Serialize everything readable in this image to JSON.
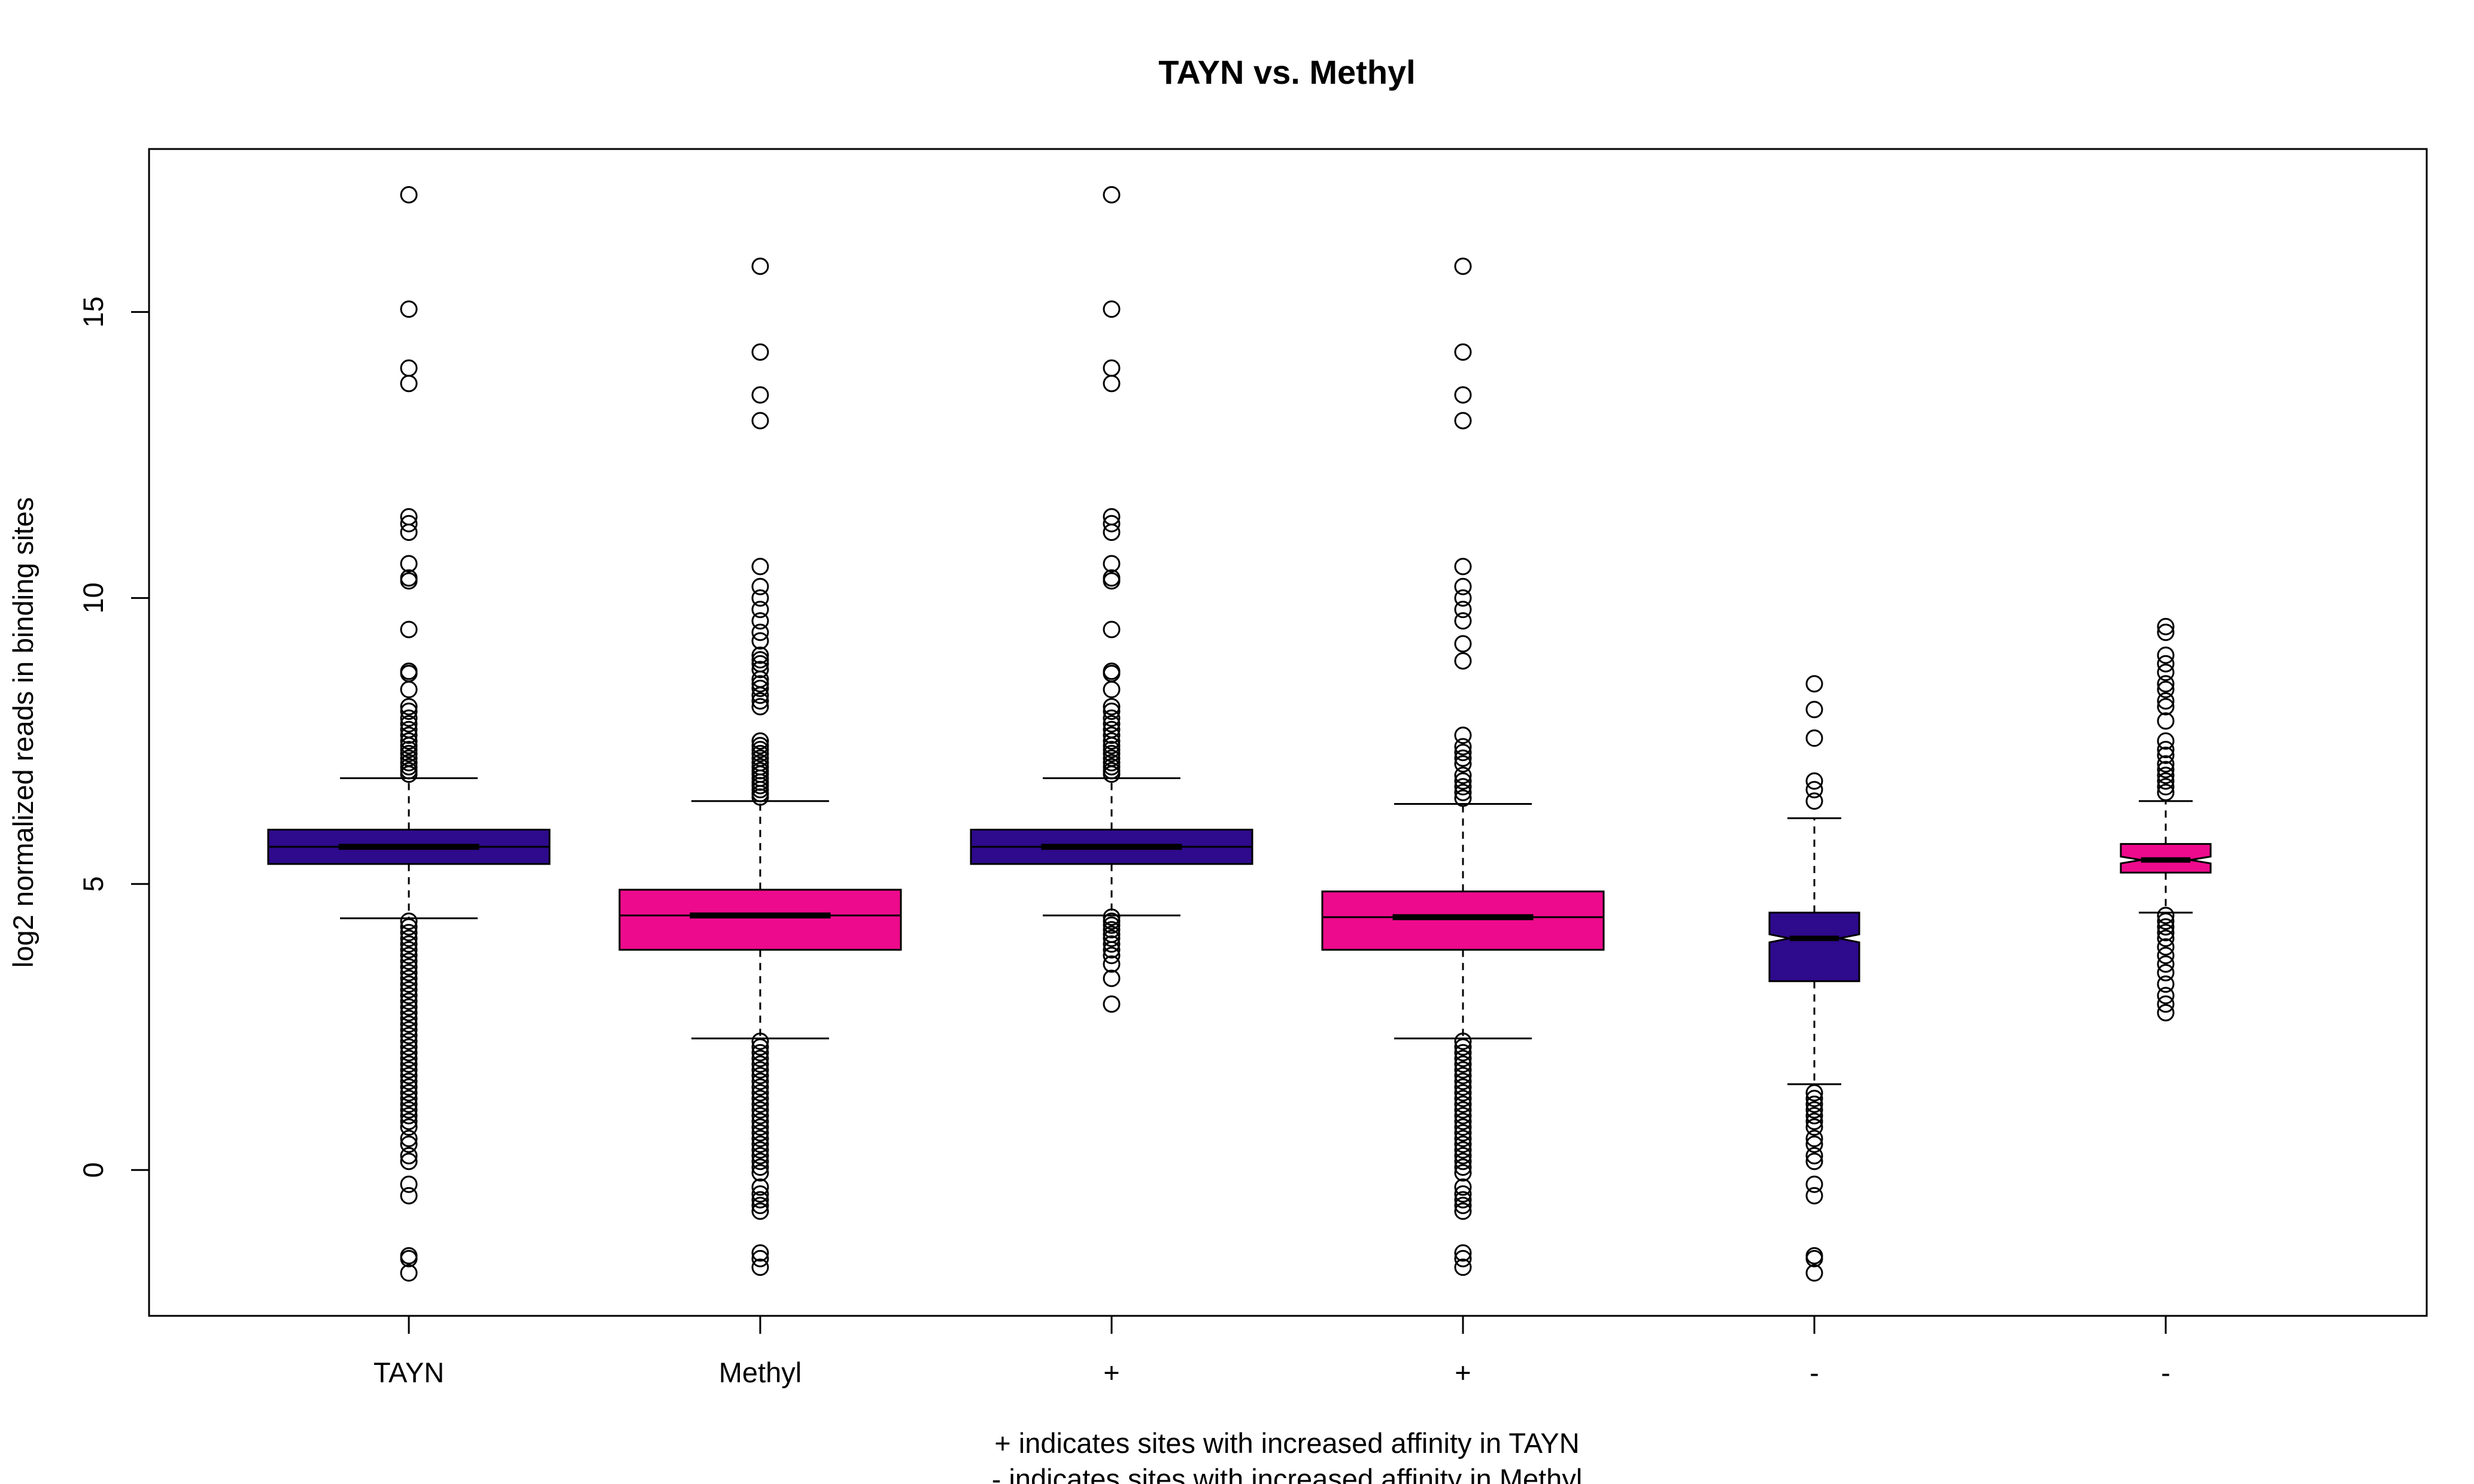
{
  "chart_data": {
    "type": "boxplot",
    "title": "TAYN vs. Methyl",
    "ylabel": "log2 normalized reads in binding sites",
    "xlabel_lines": [
      "+ indicates sites with increased affinity in TAYN",
      "- indicates sites with increased affinity in Methyl"
    ],
    "ylim": [
      -2.55,
      17.85
    ],
    "yticks": [
      0,
      5,
      10,
      15
    ],
    "grid": false,
    "legend": "none",
    "categories": [
      "TAYN",
      "Methyl",
      "+",
      "+",
      "-",
      "-"
    ],
    "colors": {
      "tayn": "#2e0a8c",
      "methyl": "#ee0a8c",
      "outline": "#000000"
    },
    "boxes": [
      {
        "label": "TAYN",
        "color": "#2e0a8c",
        "notched": false,
        "q1": 5.35,
        "median": 5.65,
        "q3": 5.95,
        "whisker_low": 4.4,
        "whisker_high": 6.85,
        "outliers": [
          17.05,
          15.05,
          14.02,
          13.75,
          11.42,
          11.3,
          11.15,
          10.6,
          10.35,
          10.3,
          9.45,
          8.72,
          8.68,
          8.4,
          8.1,
          8.02,
          7.9,
          7.8,
          7.7,
          7.6,
          7.5,
          7.42,
          7.35,
          7.28,
          7.2,
          7.12,
          7.05,
          6.98,
          6.92,
          4.35,
          4.25,
          4.15,
          4.05,
          3.95,
          3.85,
          3.75,
          3.65,
          3.55,
          3.45,
          3.35,
          3.25,
          3.15,
          3.05,
          2.95,
          2.85,
          2.75,
          2.65,
          2.55,
          2.45,
          2.35,
          2.25,
          2.15,
          2.05,
          1.95,
          1.85,
          1.75,
          1.65,
          1.55,
          1.45,
          1.35,
          1.25,
          1.15,
          1.05,
          0.95,
          0.85,
          0.75,
          0.55,
          0.45,
          0.25,
          0.15,
          -0.25,
          -0.45,
          -1.5,
          -1.55,
          -1.8
        ]
      },
      {
        "label": "Methyl",
        "color": "#ee0a8c",
        "notched": false,
        "q1": 3.85,
        "median": 4.45,
        "q3": 4.9,
        "whisker_low": 2.3,
        "whisker_high": 6.45,
        "outliers": [
          15.8,
          14.3,
          13.55,
          13.1,
          10.55,
          10.2,
          10.0,
          9.8,
          9.6,
          9.4,
          9.25,
          9.0,
          8.92,
          8.85,
          8.75,
          8.58,
          8.5,
          8.42,
          8.3,
          8.2,
          8.1,
          7.5,
          7.42,
          7.35,
          7.28,
          7.2,
          7.12,
          7.05,
          6.98,
          6.92,
          6.85,
          6.78,
          6.72,
          6.65,
          6.58,
          6.52,
          2.25,
          2.15,
          2.05,
          1.95,
          1.85,
          1.75,
          1.65,
          1.55,
          1.45,
          1.35,
          1.25,
          1.15,
          1.05,
          0.95,
          0.85,
          0.75,
          0.65,
          0.55,
          0.45,
          0.35,
          0.25,
          0.15,
          0.05,
          -0.05,
          -0.3,
          -0.42,
          -0.52,
          -0.62,
          -0.72,
          -1.45,
          -1.55,
          -1.7
        ]
      },
      {
        "label": "+",
        "color": "#2e0a8c",
        "notched": false,
        "q1": 5.35,
        "median": 5.65,
        "q3": 5.95,
        "whisker_low": 4.45,
        "whisker_high": 6.85,
        "outliers": [
          17.05,
          15.05,
          14.02,
          13.75,
          11.42,
          11.3,
          11.15,
          10.6,
          10.35,
          10.3,
          9.45,
          8.72,
          8.68,
          8.4,
          8.1,
          8.02,
          7.9,
          7.8,
          7.7,
          7.6,
          7.5,
          7.42,
          7.35,
          7.28,
          7.2,
          7.12,
          7.05,
          6.98,
          6.92,
          4.42,
          4.35,
          4.28,
          4.2,
          4.12,
          4.05,
          3.95,
          3.85,
          3.75,
          3.6,
          3.35,
          2.9
        ]
      },
      {
        "label": "+",
        "color": "#ee0a8c",
        "notched": false,
        "q1": 3.85,
        "median": 4.42,
        "q3": 4.87,
        "whisker_low": 2.3,
        "whisker_high": 6.4,
        "outliers": [
          15.8,
          14.3,
          13.55,
          13.1,
          10.55,
          10.2,
          10.0,
          9.8,
          9.6,
          9.2,
          8.9,
          7.6,
          7.4,
          7.3,
          7.2,
          7.1,
          6.9,
          6.8,
          6.7,
          6.6,
          6.5,
          2.25,
          2.15,
          2.05,
          1.95,
          1.85,
          1.75,
          1.65,
          1.55,
          1.45,
          1.35,
          1.25,
          1.15,
          1.05,
          0.95,
          0.85,
          0.75,
          0.65,
          0.55,
          0.45,
          0.35,
          0.25,
          0.15,
          0.05,
          -0.05,
          -0.3,
          -0.42,
          -0.52,
          -0.62,
          -0.72,
          -1.45,
          -1.55,
          -1.7
        ]
      },
      {
        "label": "-",
        "color": "#2e0a8c",
        "notched": true,
        "q1": 3.3,
        "median": 4.05,
        "q3": 4.5,
        "notch_low": 3.98,
        "notch_high": 4.12,
        "whisker_low": 1.5,
        "whisker_high": 6.15,
        "outliers": [
          8.5,
          8.05,
          7.55,
          6.8,
          6.65,
          6.45,
          1.35,
          1.25,
          1.15,
          1.05,
          0.95,
          0.85,
          0.75,
          0.55,
          0.45,
          0.25,
          0.15,
          -0.25,
          -0.45,
          -1.5,
          -1.55,
          -1.8
        ]
      },
      {
        "label": "-",
        "color": "#ee0a8c",
        "notched": true,
        "q1": 5.2,
        "median": 5.42,
        "q3": 5.7,
        "notch_low": 5.36,
        "notch_high": 5.48,
        "whisker_low": 4.5,
        "whisker_high": 6.45,
        "outliers": [
          9.5,
          9.4,
          9.0,
          8.85,
          8.7,
          8.5,
          8.4,
          8.2,
          8.1,
          7.85,
          7.5,
          7.35,
          7.25,
          7.1,
          7.0,
          6.9,
          6.8,
          6.7,
          6.6,
          4.45,
          4.35,
          4.25,
          4.15,
          4.05,
          3.9,
          3.75,
          3.6,
          3.45,
          3.25,
          3.05,
          2.9,
          2.75
        ]
      }
    ]
  }
}
